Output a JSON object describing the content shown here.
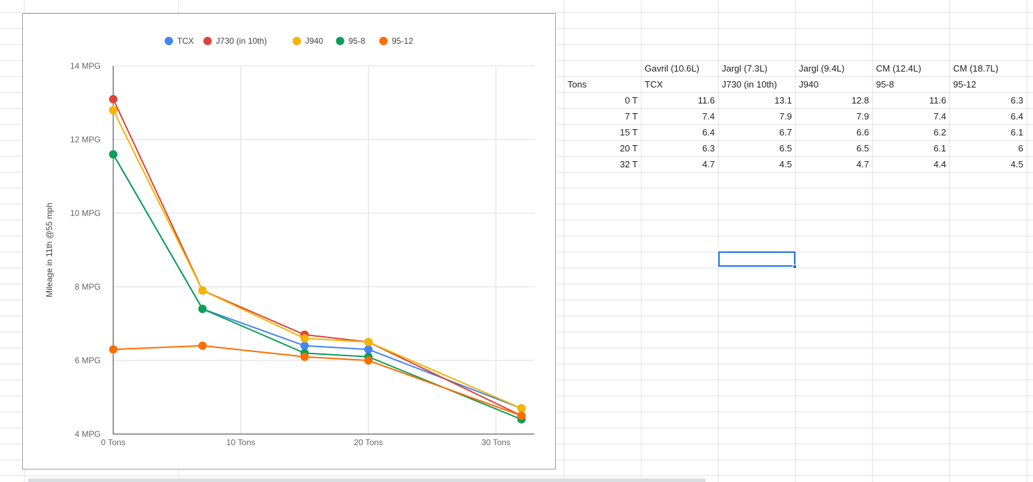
{
  "chart_data": {
    "type": "line",
    "title": "",
    "ylabel": "Mileage in 11th @55 mph",
    "xlabel": "",
    "x": [
      0,
      7,
      15,
      20,
      32
    ],
    "xlim": [
      0,
      33
    ],
    "ylim": [
      4,
      14
    ],
    "x_ticks": [
      0,
      10,
      20,
      30
    ],
    "x_tick_labels": [
      "0 Tons",
      "10 Tons",
      "20 Tons",
      "30 Tons"
    ],
    "y_ticks": [
      4,
      6,
      8,
      10,
      12,
      14
    ],
    "y_tick_labels": [
      "4 MPG",
      "6 MPG",
      "8 MPG",
      "10 MPG",
      "12 MPG",
      "14 MPG"
    ],
    "grid": true,
    "legend_position": "top",
    "series": [
      {
        "name": "TCX",
        "color": "#4285f4",
        "values": [
          11.6,
          7.4,
          6.4,
          6.3,
          4.7
        ]
      },
      {
        "name": "J730 (in 10th)",
        "color": "#db4437",
        "values": [
          13.1,
          7.9,
          6.7,
          6.5,
          4.5
        ]
      },
      {
        "name": "J940",
        "color": "#f4b400",
        "values": [
          12.8,
          7.9,
          6.6,
          6.5,
          4.7
        ]
      },
      {
        "name": "95-8",
        "color": "#0f9d58",
        "values": [
          11.6,
          7.4,
          6.2,
          6.1,
          4.4
        ]
      },
      {
        "name": "95-12",
        "color": "#ff6d01",
        "values": [
          6.3,
          6.4,
          6.1,
          6.0,
          4.5
        ]
      }
    ]
  },
  "sheet": {
    "header_row1": [
      "",
      "Gavril (10.6L)",
      "Jargl (7.3L)",
      "Jargl (9.4L)",
      "CM (12.4L)",
      "CM (18.7L)"
    ],
    "header_row2": [
      "Tons",
      "TCX",
      "J730 (in 10th)",
      "J940",
      "95-8",
      "95-12"
    ],
    "rows": [
      [
        "0 T",
        "11.6",
        "13.1",
        "12.8",
        "11.6",
        "6.3"
      ],
      [
        "7 T",
        "7.4",
        "7.9",
        "7.9",
        "7.4",
        "6.4"
      ],
      [
        "15 T",
        "6.4",
        "6.7",
        "6.6",
        "6.2",
        "6.1"
      ],
      [
        "20 T",
        "6.3",
        "6.5",
        "6.5",
        "6.1",
        "6"
      ],
      [
        "32 T",
        "4.7",
        "4.5",
        "4.7",
        "4.4",
        "4.5"
      ]
    ]
  },
  "colors": {
    "gridline": "#e2e2e2",
    "selection": "#1a73e8"
  }
}
